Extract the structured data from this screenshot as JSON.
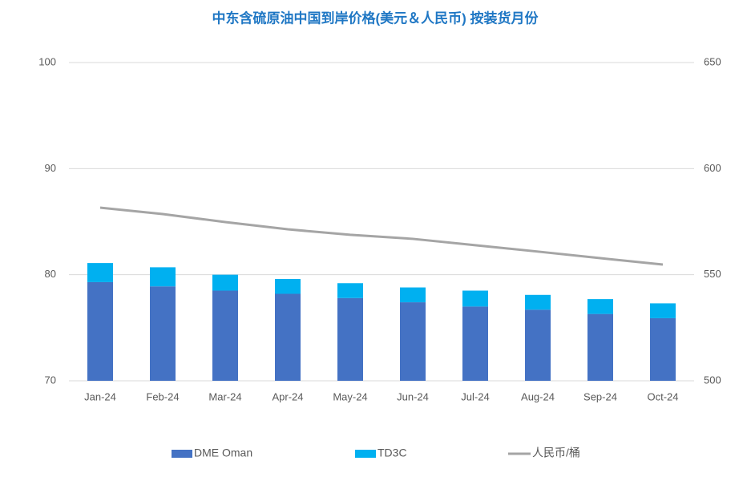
{
  "chart_data": {
    "type": "bar",
    "stacked": true,
    "title": "中东含硫原油中国到岸价格(美元＆人民币) 按装货月份",
    "categories": [
      "Jan-24",
      "Feb-24",
      "Mar-24",
      "Apr-24",
      "May-24",
      "Jun-24",
      "Jul-24",
      "Aug-24",
      "Sep-24",
      "Oct-24"
    ],
    "series": [
      {
        "name": "DME Oman",
        "color": "#4472c4",
        "type": "bar",
        "values": [
          79.3,
          78.9,
          78.5,
          78.2,
          77.8,
          77.4,
          77.0,
          76.7,
          76.3,
          75.9
        ]
      },
      {
        "name": "TD3C",
        "color": "#00b0f0",
        "type": "bar",
        "values": [
          1.8,
          1.8,
          1.5,
          1.4,
          1.4,
          1.4,
          1.5,
          1.4,
          1.4,
          1.4
        ]
      },
      {
        "name": "人民币/桶",
        "color": "#a5a5a5",
        "type": "line",
        "axis": "y2",
        "values": [
          581.6,
          578.6,
          574.8,
          571.4,
          568.8,
          566.9,
          563.9,
          560.9,
          557.8,
          554.8
        ]
      }
    ],
    "ylim": [
      70,
      100
    ],
    "yticks": [
      70,
      80,
      90,
      100
    ],
    "y2lim": [
      500,
      650
    ],
    "y2ticks": [
      500,
      550,
      600,
      650
    ],
    "grid": true,
    "legend": "bottom"
  }
}
